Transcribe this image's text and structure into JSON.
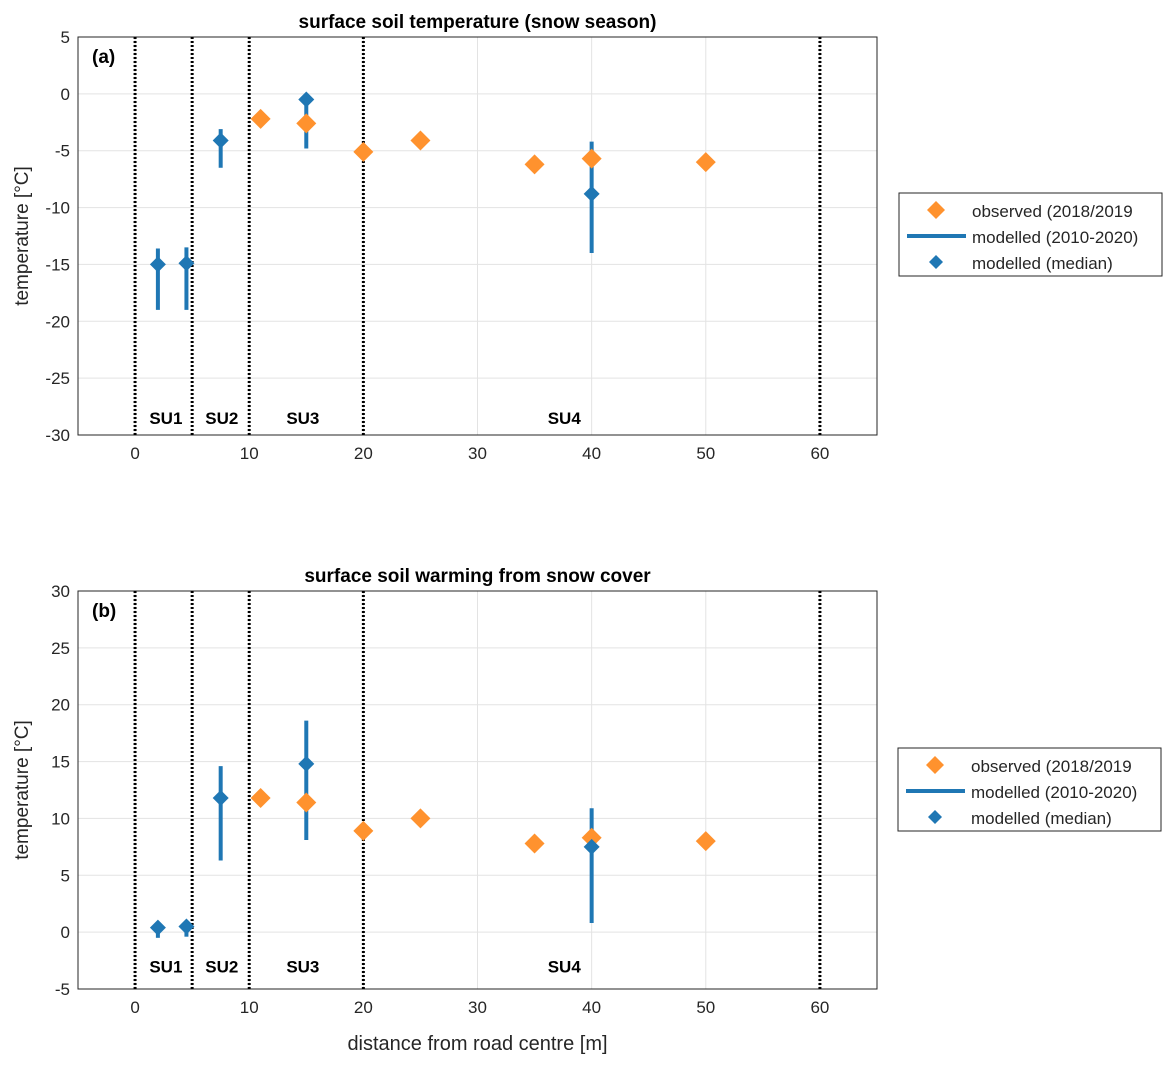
{
  "chart_data": [
    {
      "type": "scatter",
      "panel_label": "(a)",
      "title": "surface soil temperature (snow season)",
      "xlabel": "",
      "ylabel": "temperature [°C]",
      "xlim": [
        -5,
        65
      ],
      "ylim": [
        -30,
        5
      ],
      "xticks": [
        0,
        10,
        20,
        30,
        40,
        50,
        60
      ],
      "yticks": [
        -30,
        -25,
        -20,
        -15,
        -10,
        -5,
        0,
        5
      ],
      "grid": true,
      "boundaries": [
        0,
        5,
        10,
        20,
        60
      ],
      "zones": [
        {
          "label": "SU1",
          "x": 2.7
        },
        {
          "label": "SU2",
          "x": 7.6
        },
        {
          "label": "SU3",
          "x": 14.7
        },
        {
          "label": "SU4",
          "x": 37.6
        }
      ],
      "zone_label_y": -28.5,
      "legend": {
        "placement": "right-outside",
        "entries": [
          "observed (2018/2019",
          "modelled (2010-2020)",
          "modelled (median)"
        ]
      },
      "series": [
        {
          "name": "observed (2018/2019",
          "color": "#FF922E",
          "x": [
            11,
            15,
            20,
            25,
            35,
            40,
            50
          ],
          "y": [
            -2.2,
            -2.6,
            -5.1,
            -4.1,
            -6.2,
            -5.7,
            -6.0
          ]
        },
        {
          "name": "modelled (median)",
          "color": "#1F77B4",
          "x": [
            2,
            4.5,
            7.5,
            15,
            40
          ],
          "y": [
            -15.0,
            -14.9,
            -4.1,
            -0.5,
            -8.8
          ],
          "range_low": [
            -19.0,
            -19.0,
            -6.5,
            -4.8,
            -14.0
          ],
          "range_high": [
            -13.6,
            -13.5,
            -3.1,
            -0.5,
            -4.2
          ]
        }
      ]
    },
    {
      "type": "scatter",
      "panel_label": "(b)",
      "title": "surface soil warming from snow cover",
      "xlabel": "distance from road centre [m]",
      "ylabel": "temperature [°C]",
      "xlim": [
        -5,
        65
      ],
      "ylim": [
        -5,
        30
      ],
      "xticks": [
        0,
        10,
        20,
        30,
        40,
        50,
        60
      ],
      "yticks": [
        -5,
        0,
        5,
        10,
        15,
        20,
        25,
        30
      ],
      "grid": true,
      "boundaries": [
        0,
        5,
        10,
        20,
        60
      ],
      "zones": [
        {
          "label": "SU1",
          "x": 2.7
        },
        {
          "label": "SU2",
          "x": 7.6
        },
        {
          "label": "SU3",
          "x": 14.7
        },
        {
          "label": "SU4",
          "x": 37.6
        }
      ],
      "zone_label_y": -3,
      "legend": {
        "placement": "right-outside",
        "entries": [
          "observed (2018/2019",
          "modelled (2010-2020)",
          "modelled (median)"
        ]
      },
      "series": [
        {
          "name": "observed (2018/2019",
          "color": "#FF922E",
          "x": [
            11,
            15,
            20,
            25,
            35,
            40,
            50
          ],
          "y": [
            11.8,
            11.4,
            8.9,
            10.0,
            7.8,
            8.3,
            8.0
          ]
        },
        {
          "name": "modelled (median)",
          "color": "#1F77B4",
          "x": [
            2,
            4.5,
            7.5,
            15,
            40
          ],
          "y": [
            0.4,
            0.5,
            11.8,
            14.8,
            7.5
          ],
          "range_low": [
            -0.5,
            -0.4,
            6.3,
            8.1,
            0.8
          ],
          "range_high": [
            0.8,
            0.8,
            14.6,
            18.6,
            10.9
          ]
        }
      ]
    }
  ]
}
